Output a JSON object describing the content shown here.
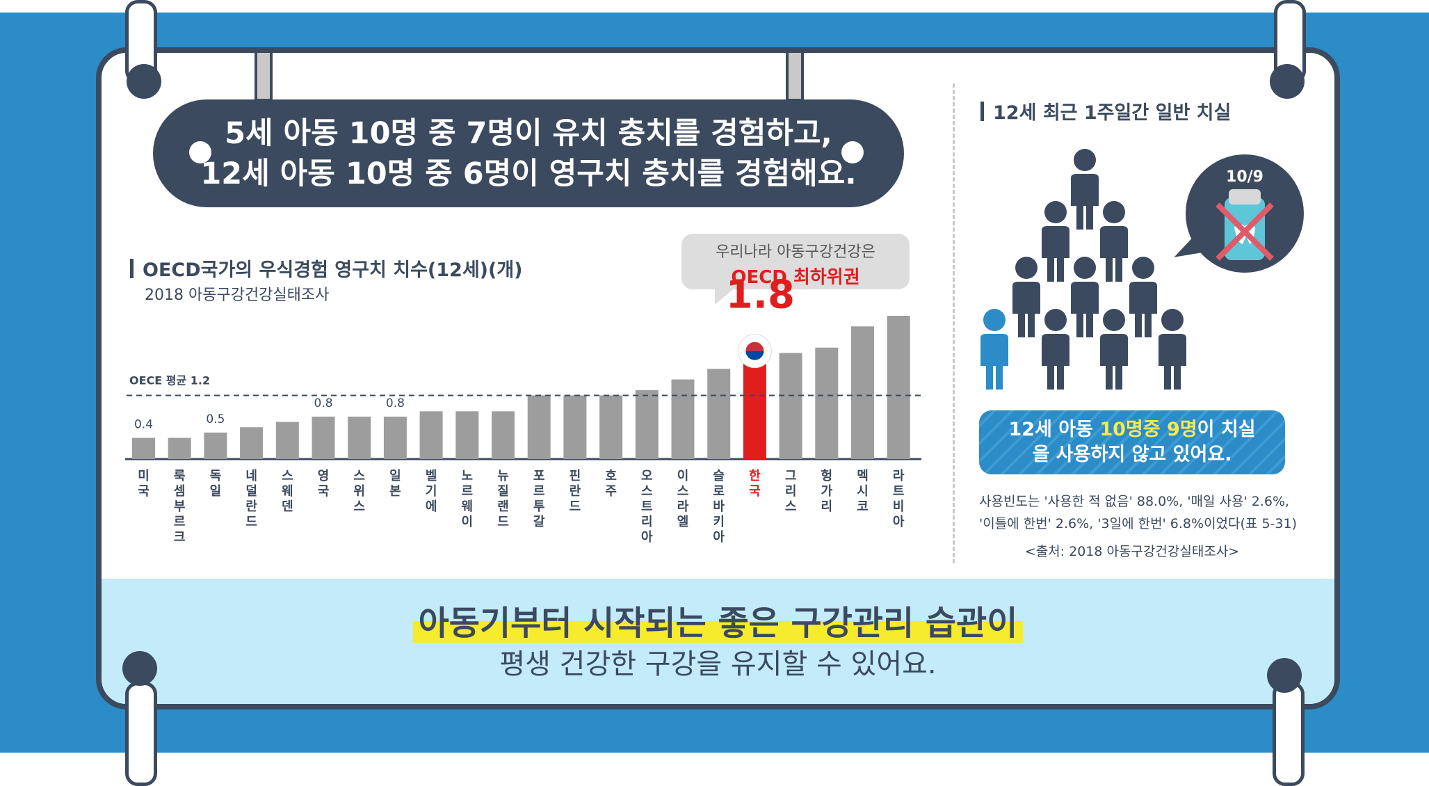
{
  "headline": {
    "line1": "5세 아동 10명 중 7명이 유치 충치를 경험하고,",
    "line2": "12세 아동 10명 중 6명이 영구치 충치를 경험해요."
  },
  "left_section": {
    "title": "OECD국가의 우식경험 영구치 치수(12세)(개)",
    "subtitle": "2018 아동구강건강실태조사"
  },
  "callout": {
    "line1": "우리나라 아동구강건강은",
    "line2": "OECD 최하위권"
  },
  "chart_data": {
    "type": "bar",
    "title": "OECD국가의 우식경험 영구치 치수(12세)(개)",
    "subtitle": "2018 아동구강건강실태조사",
    "categories": [
      "미국",
      "룩셈부르크",
      "독일",
      "네덜란드",
      "스웨덴",
      "영국",
      "스위스",
      "일본",
      "벨기에",
      "노르웨이",
      "뉴질랜드",
      "포르투갈",
      "핀란드",
      "호주",
      "오스트리아",
      "이스라엘",
      "슬로바키아",
      "한국",
      "그리스",
      "헝가리",
      "멕시코",
      "라트비아"
    ],
    "values": [
      0.4,
      0.4,
      0.5,
      0.6,
      0.7,
      0.8,
      0.8,
      0.8,
      0.9,
      0.9,
      0.9,
      1.2,
      1.2,
      1.2,
      1.3,
      1.5,
      1.7,
      1.8,
      2.0,
      2.1,
      2.5,
      2.7
    ],
    "data_labels": {
      "0": "0.4",
      "2": "0.5",
      "5": "0.8",
      "7": "0.8",
      "17": "1.8"
    },
    "highlight": {
      "category": "한국",
      "color": "#e01e1e"
    },
    "average_line": {
      "label": "OECE 평균 1.2",
      "value": 1.2
    },
    "ylim": [
      0,
      3.0
    ],
    "bar_color": "#9d9d9d",
    "xlabel": "",
    "ylabel": ""
  },
  "right_section": {
    "title": "12세 최근 1주일간 일반 치실",
    "bubble_fraction": "10/9",
    "figures": {
      "total": 10,
      "users": 1
    },
    "box_line1_pre": "12세 아동 ",
    "box_line1_highlight": "10명중 9명",
    "box_line1_post": "이 치실",
    "box_line2": "을 사용하지 않고 있어요.",
    "note_line1": "사용빈도는 '사용한 적 없음' 88.0%, '매일 사용' 2.6%,",
    "note_line2": "'이틀에 한번' 2.6%, '3일에 한번' 6.8%이었다(표 5-31)",
    "source": "<출처: 2018 아동구강건강실태조사>"
  },
  "footer": {
    "line1": "아동기부터 시작되는 좋은 구강관리 습관이",
    "line2": "평생 건강한 구강을 유지할 수 있어요."
  },
  "colors": {
    "navy": "#3b4a5e",
    "blue": "#2b8cc8",
    "light_blue": "#c3ebfa",
    "yellow": "#f6eb2c",
    "red": "#e01e1e"
  }
}
